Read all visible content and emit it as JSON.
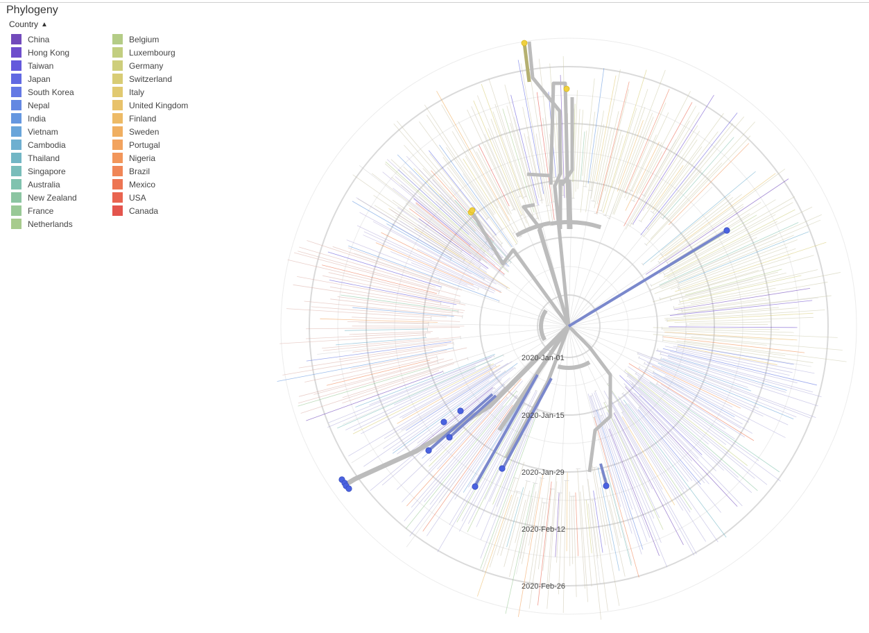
{
  "panel": {
    "title": "Phylogeny",
    "legend_toggle_label": "Country"
  },
  "legend": {
    "items": [
      {
        "label": "China",
        "color": "#5a2bb0"
      },
      {
        "label": "Hong Kong",
        "color": "#5530c4"
      },
      {
        "label": "Taiwan",
        "color": "#4a3dd6"
      },
      {
        "label": "Japan",
        "color": "#4650de"
      },
      {
        "label": "South Korea",
        "color": "#4a62e0"
      },
      {
        "label": "Nepal",
        "color": "#4a74de"
      },
      {
        "label": "India",
        "color": "#4b86db"
      },
      {
        "label": "Vietnam",
        "color": "#5096d4"
      },
      {
        "label": "Cambodia",
        "color": "#56a2c8"
      },
      {
        "label": "Thailand",
        "color": "#5aaabb"
      },
      {
        "label": "Singapore",
        "color": "#62b2ae"
      },
      {
        "label": "Australia",
        "color": "#6bb8a0"
      },
      {
        "label": "New Zealand",
        "color": "#78bc92"
      },
      {
        "label": "France",
        "color": "#88c084"
      },
      {
        "label": "Netherlands",
        "color": "#98c27a"
      },
      {
        "label": "Belgium",
        "color": "#a8c472"
      },
      {
        "label": "Luxembourg",
        "color": "#b8c66a"
      },
      {
        "label": "Germany",
        "color": "#c6c664"
      },
      {
        "label": "Switzerland",
        "color": "#d2c45e"
      },
      {
        "label": "Italy",
        "color": "#dcc058"
      },
      {
        "label": "United Kingdom",
        "color": "#e4b852"
      },
      {
        "label": "Finland",
        "color": "#eaae4c"
      },
      {
        "label": "Sweden",
        "color": "#eea246"
      },
      {
        "label": "Portugal",
        "color": "#f09442",
        "note": ""
      },
      {
        "label": "Nigeria",
        "color": "#f0843e"
      },
      {
        "label": "Brazil",
        "color": "#ee723a"
      },
      {
        "label": "Mexico",
        "color": "#ea5e36"
      },
      {
        "label": "USA",
        "color": "#e64a32"
      },
      {
        "label": "Canada",
        "color": "#e0382e"
      }
    ]
  },
  "tree": {
    "time_labels": [
      "2020-Jan-01",
      "2020-Jan-15",
      "2020-Jan-29",
      "2020-Feb-12",
      "2020-Feb-26"
    ],
    "colors": {
      "selected_branch": "#bcbcbc",
      "faded_branch": "#d6d6d6",
      "ring": "#dadada",
      "blue_tip": "#4a62e0",
      "yellow_tip": "#f0d040",
      "blue_branch": "#7a88cc",
      "olive_branch": "#b5b070"
    }
  }
}
